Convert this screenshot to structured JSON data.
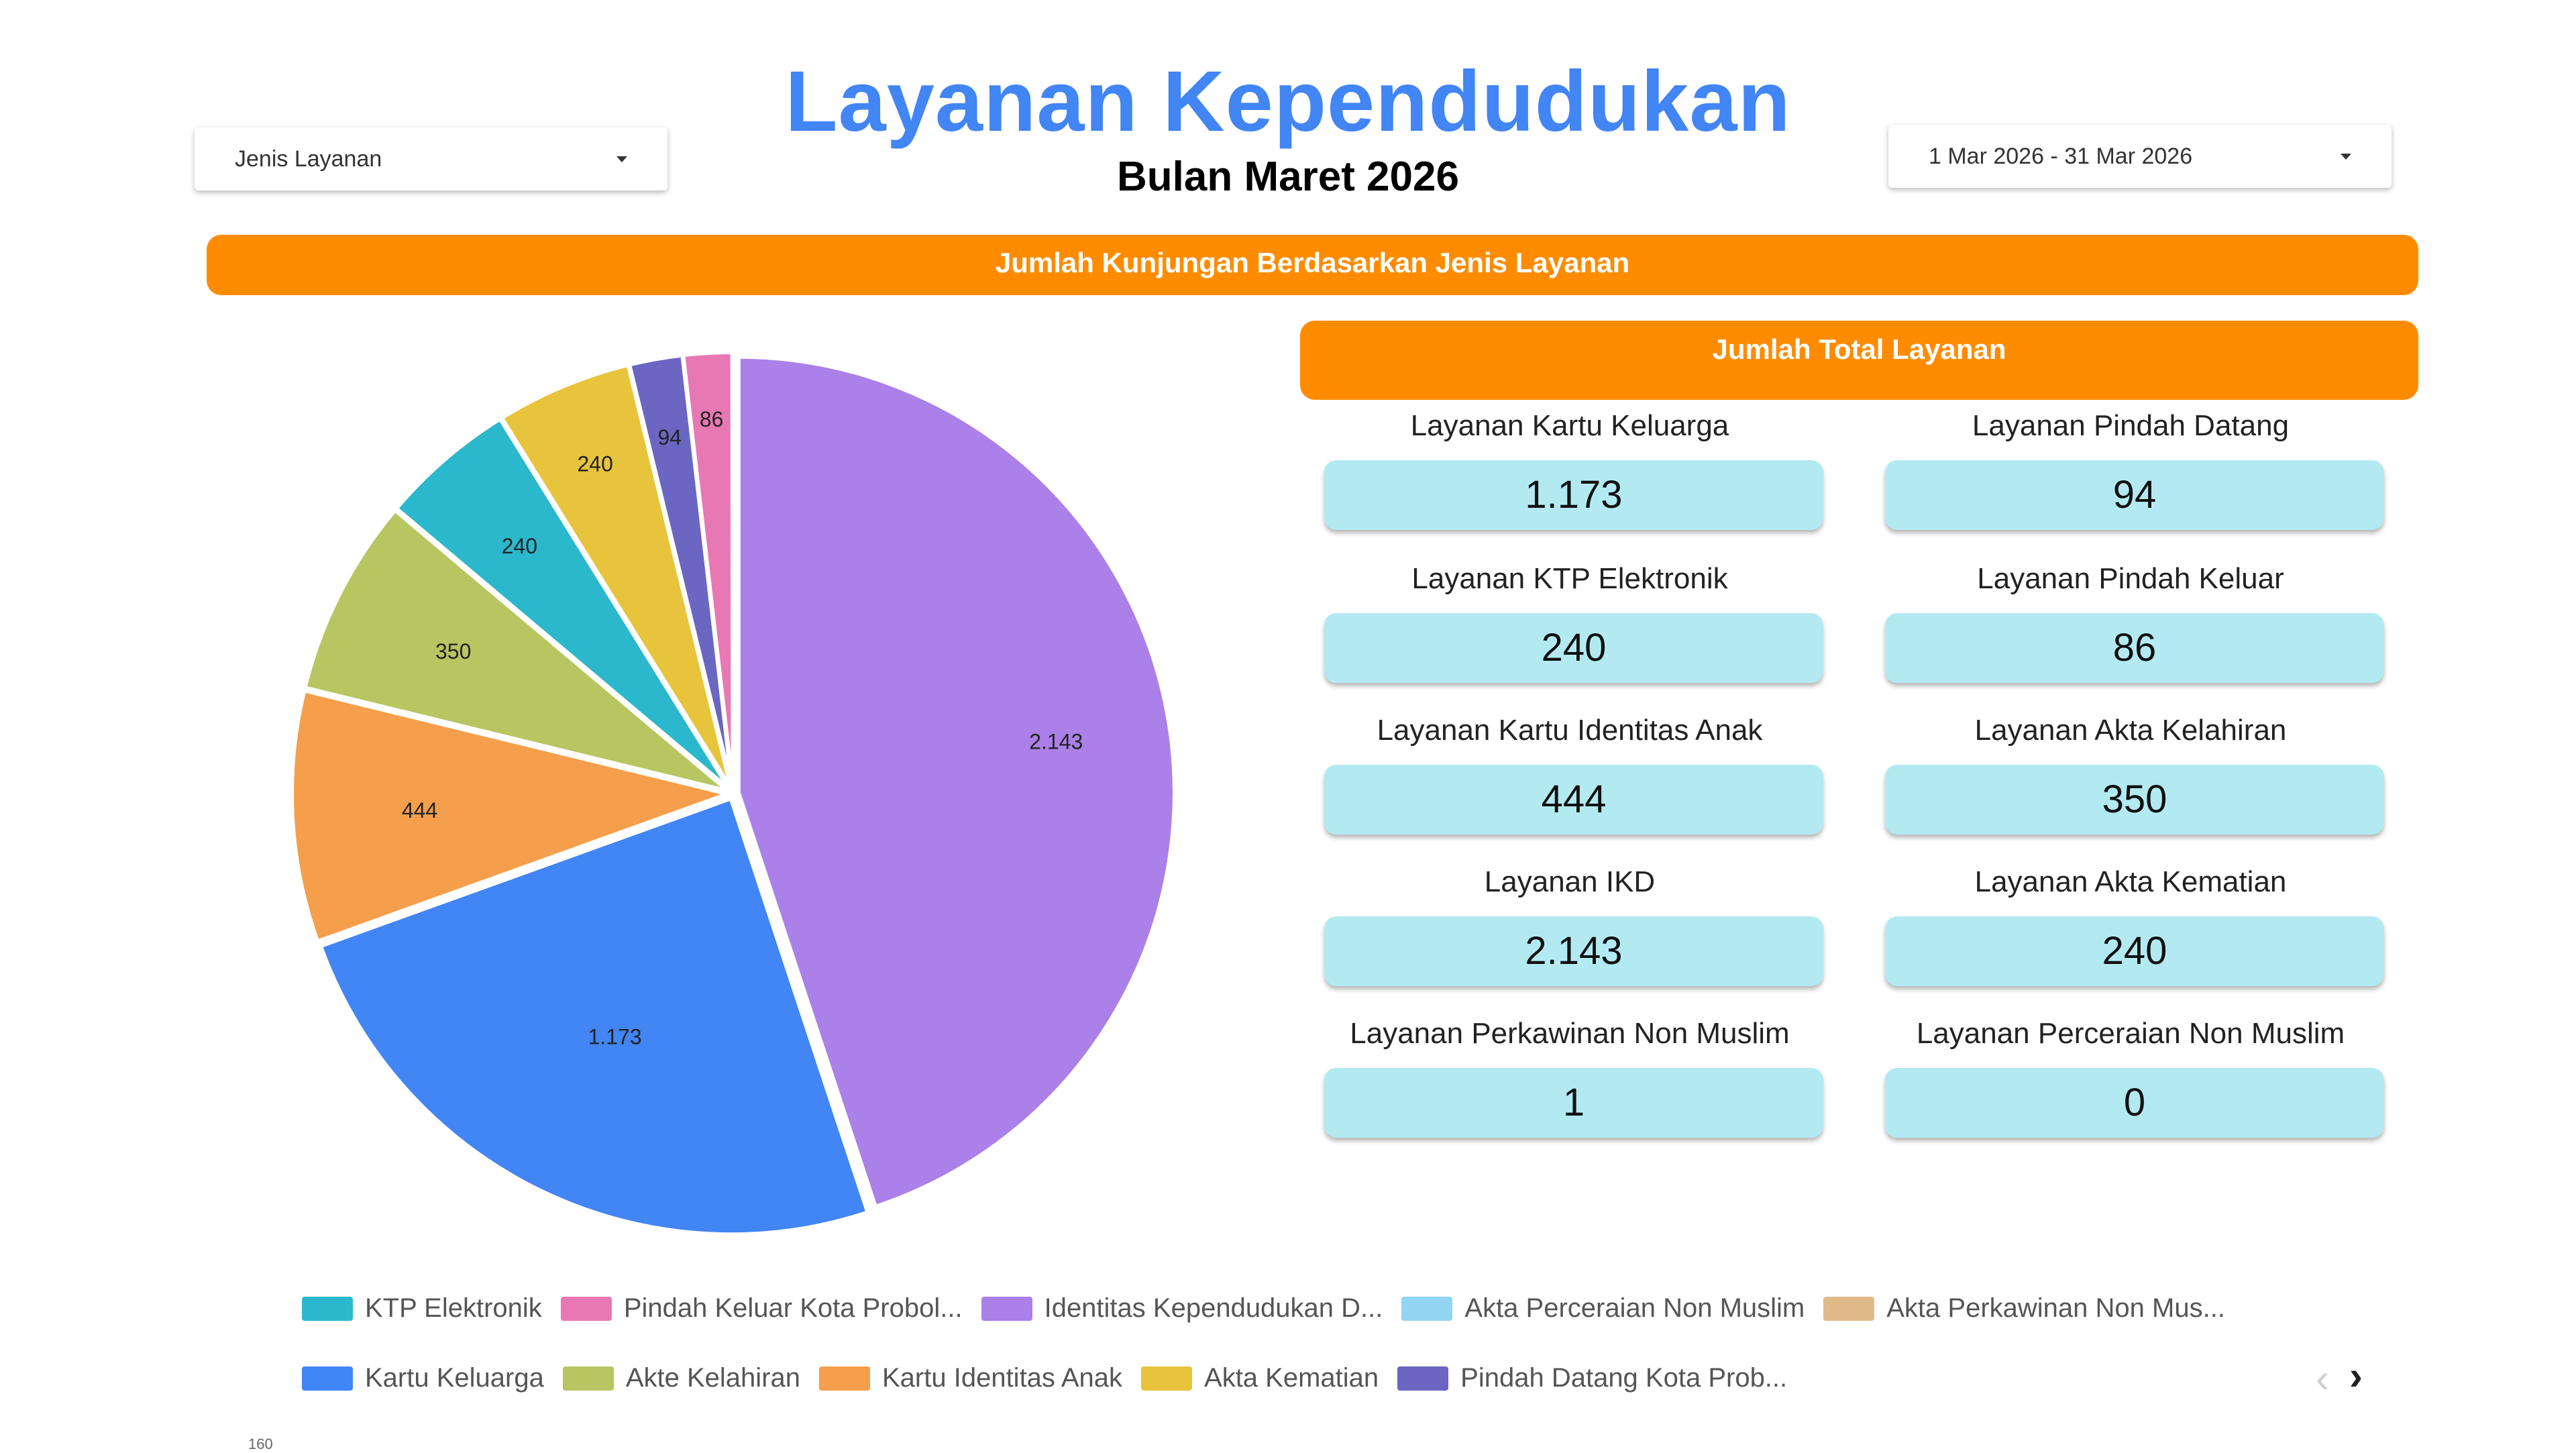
{
  "header": {
    "title": "Layanan Kependudukan",
    "subtitle": "Bulan Maret 2026"
  },
  "filters": {
    "jenis_layanan": "Jenis Layanan",
    "date_range": "1 Mar 2026 - 31 Mar 2026"
  },
  "banners": {
    "main": "Jumlah Kunjungan Berdasarkan Jenis Layanan",
    "total": "Jumlah Total Layanan"
  },
  "stats": [
    {
      "label": "Layanan Kartu Keluarga",
      "value": "1.173"
    },
    {
      "label": "Layanan Pindah Datang",
      "value": "94"
    },
    {
      "label": "Layanan KTP Elektronik",
      "value": "240"
    },
    {
      "label": "Layanan Pindah Keluar",
      "value": "86"
    },
    {
      "label": "Layanan Kartu Identitas Anak",
      "value": "444"
    },
    {
      "label": "Layanan Akta Kelahiran",
      "value": "350"
    },
    {
      "label": "Layanan IKD",
      "value": "2.143"
    },
    {
      "label": "Layanan Akta Kematian",
      "value": "240"
    },
    {
      "label": "Layanan Perkawinan Non Muslim",
      "value": "1"
    },
    {
      "label": "Layanan Perceraian Non Muslim",
      "value": "0"
    }
  ],
  "chart_data": {
    "type": "pie",
    "slices": [
      {
        "name": "Identitas Kependudukan D...",
        "value": 2143,
        "label": "2.143",
        "color": "#ab80e8"
      },
      {
        "name": "Kartu Keluarga",
        "value": 1173,
        "label": "1.173",
        "color": "#4285f4"
      },
      {
        "name": "Kartu Identitas Anak",
        "value": 444,
        "label": "444",
        "color": "#f59e4c"
      },
      {
        "name": "Akte Kelahiran",
        "value": 350,
        "label": "350",
        "color": "#b7c661"
      },
      {
        "name": "KTP Elektronik",
        "value": 240,
        "label": "240",
        "color": "#2cb8cc"
      },
      {
        "name": "Akta Kematian",
        "value": 240,
        "label": "240",
        "color": "#e8c43c"
      },
      {
        "name": "Pindah Datang Kota Prob...",
        "value": 94,
        "label": "94",
        "color": "#6a66c2"
      },
      {
        "name": "Pindah Keluar Kota Probol...",
        "value": 86,
        "label": "86",
        "color": "#e878b4"
      },
      {
        "name": "Akta Perceraian Non Muslim",
        "value": 0,
        "label": "",
        "color": "#93d5f3"
      },
      {
        "name": "Akta Perkawinan Non Mus...",
        "value": 1,
        "label": "",
        "color": "#dfbb8a"
      }
    ],
    "legend_placement": "bottom"
  },
  "legend": {
    "row1": [
      {
        "label": "KTP Elektronik",
        "color": "#2cb8cc"
      },
      {
        "label": "Pindah Keluar Kota Probol...",
        "color": "#e878b4"
      },
      {
        "label": "Identitas Kependudukan D...",
        "color": "#ab80e8"
      },
      {
        "label": "Akta Perceraian Non Muslim",
        "color": "#93d5f3"
      },
      {
        "label": "Akta Perkawinan Non Mus...",
        "color": "#dfbb8a"
      }
    ],
    "row2": [
      {
        "label": "Kartu Keluarga",
        "color": "#4285f4"
      },
      {
        "label": "Akte Kelahiran",
        "color": "#b7c661"
      },
      {
        "label": "Kartu Identitas Anak",
        "color": "#f59e4c"
      },
      {
        "label": "Akta Kematian",
        "color": "#e8c43c"
      },
      {
        "label": "Pindah Datang Kota Prob...",
        "color": "#6a66c2"
      }
    ],
    "prev_glyph": "‹",
    "next_glyph": "›"
  },
  "footer": {
    "cut_text": "160"
  }
}
